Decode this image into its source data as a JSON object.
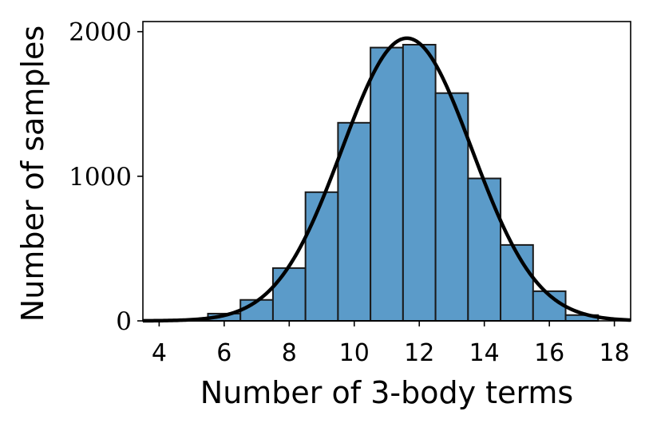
{
  "chart_data": {
    "type": "bar",
    "title": "",
    "xlabel": "Number of 3-body terms",
    "ylabel": "Number of samples",
    "xlim": [
      3.5,
      18.5
    ],
    "ylim": [
      0,
      2070
    ],
    "x_ticks": [
      "4",
      "6",
      "8",
      "10",
      "12",
      "14",
      "16",
      "18"
    ],
    "y_ticks": [
      "0",
      "1000",
      "2000"
    ],
    "grid": false,
    "bar_color": "#5b9bc9",
    "bar_edge_color": "#1a1a1a",
    "curve_color": "#000000",
    "bin_edges": [
      3.5,
      4.5,
      5.5,
      6.5,
      7.5,
      8.5,
      9.5,
      10.5,
      11.5,
      12.5,
      13.5,
      14.5,
      15.5,
      16.5,
      17.5
    ],
    "values": [
      2,
      5,
      50,
      145,
      365,
      890,
      1370,
      1890,
      1910,
      1575,
      985,
      525,
      205,
      40
    ],
    "fit_curve": {
      "type": "gaussian",
      "mean": 11.62,
      "std": 2.0,
      "peak": 1955
    }
  }
}
